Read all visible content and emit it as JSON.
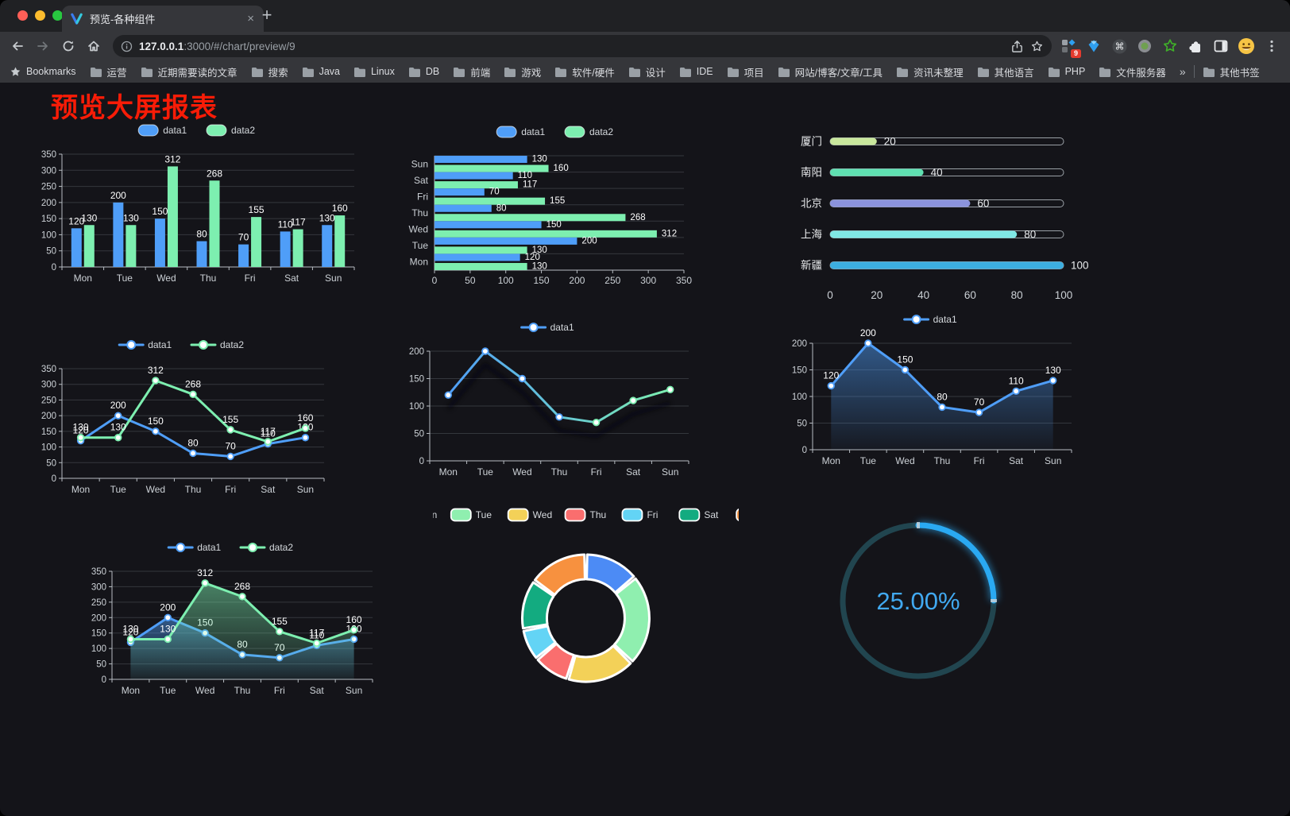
{
  "browser": {
    "tab": {
      "title": "预览-各种组件"
    },
    "url": {
      "host": "127.0.0.1",
      "rest": ":3000/#/chart/preview/9"
    },
    "bookmarks_label": "Bookmarks",
    "bookmarks": [
      "运营",
      "近期需要读的文章",
      "搜索",
      "Java",
      "Linux",
      "DB",
      "前端",
      "游戏",
      "软件/硬件",
      "设计",
      "IDE",
      "项目",
      "网站/博客/文章/工具",
      "资讯未整理",
      "其他语言",
      "PHP",
      "文件服务器"
    ],
    "other_bookmarks": "其他书签",
    "extension_badge": "9",
    "icons": {
      "close": "×",
      "new_tab": "+",
      "overflow": "»",
      "menu": "⋮",
      "command": "⌘"
    }
  },
  "page": {
    "title": "预览大屏报表",
    "title_color": "#f81c07",
    "background": "#141419"
  },
  "colors": {
    "series_blue": "#4f9ef8",
    "series_green": "#7defb0",
    "gauge_blue": "#2aa9f2",
    "axis_text": "#ccd1d6"
  },
  "chart_data": [
    {
      "id": "grouped-bar",
      "type": "bar",
      "categories": [
        "Mon",
        "Tue",
        "Wed",
        "Thu",
        "Fri",
        "Sat",
        "Sun"
      ],
      "series": [
        {
          "name": "data1",
          "color": "#4f9ef8",
          "values": [
            120,
            200,
            150,
            80,
            70,
            110,
            130
          ]
        },
        {
          "name": "data2",
          "color": "#7defb0",
          "values": [
            130,
            130,
            312,
            268,
            155,
            117,
            160
          ]
        }
      ],
      "ylim": [
        0,
        350
      ],
      "ystep": 50,
      "legend_position": "top",
      "legend_marker": "roundRect",
      "value_labels": true,
      "grid": true
    },
    {
      "id": "horizontal-bar",
      "type": "hbar",
      "categories": [
        "Mon",
        "Tue",
        "Wed",
        "Thu",
        "Fri",
        "Sat",
        "Sun"
      ],
      "series": [
        {
          "name": "data1",
          "color": "#4f9ef8",
          "values": [
            120,
            200,
            150,
            80,
            70,
            110,
            130
          ]
        },
        {
          "name": "data2",
          "color": "#7defb0",
          "values": [
            130,
            130,
            312,
            268,
            155,
            117,
            160
          ]
        }
      ],
      "xlim": [
        0,
        350
      ],
      "xstep": 50,
      "legend_position": "top",
      "legend_marker": "roundRect",
      "value_labels": true,
      "grid": true
    },
    {
      "id": "progress-bars",
      "type": "progress",
      "rows": [
        {
          "label": "厦门",
          "value": 20,
          "color": "#c9e79c"
        },
        {
          "label": "南阳",
          "value": 40,
          "color": "#5fe0b1"
        },
        {
          "label": "北京",
          "value": 60,
          "color": "#8b93dd"
        },
        {
          "label": "上海",
          "value": 80,
          "color": "#7fe7e4"
        },
        {
          "label": "新疆",
          "value": 100,
          "color": "#3caee0"
        }
      ],
      "xlim": [
        0,
        100
      ],
      "xstep": 20
    },
    {
      "id": "line-two-series",
      "type": "line",
      "categories": [
        "Mon",
        "Tue",
        "Wed",
        "Thu",
        "Fri",
        "Sat",
        "Sun"
      ],
      "series": [
        {
          "name": "data1",
          "color": "#4f9ef8",
          "values": [
            120,
            200,
            150,
            80,
            70,
            110,
            130
          ]
        },
        {
          "name": "data2",
          "color": "#7defb0",
          "values": [
            130,
            130,
            312,
            268,
            155,
            117,
            160
          ]
        }
      ],
      "ylim": [
        0,
        350
      ],
      "ystep": 50,
      "legend_position": "top",
      "legend_marker": "lineDot",
      "value_labels": true,
      "grid": true
    },
    {
      "id": "line-gradient-shadow",
      "type": "line",
      "categories": [
        "Mon",
        "Tue",
        "Wed",
        "Thu",
        "Fri",
        "Sat",
        "Sun"
      ],
      "series": [
        {
          "name": "data1",
          "color": "#4f9ef8",
          "gradient": [
            "#4f9ef8",
            "#7defb0"
          ],
          "values": [
            120,
            200,
            150,
            80,
            70,
            110,
            130
          ]
        }
      ],
      "ylim": [
        0,
        200
      ],
      "ystep": 50,
      "legend_position": "top",
      "legend_marker": "lineDot",
      "value_labels": false,
      "shadow": true,
      "grid": true
    },
    {
      "id": "area-single",
      "type": "line",
      "categories": [
        "Mon",
        "Tue",
        "Wed",
        "Thu",
        "Fri",
        "Sat",
        "Sun"
      ],
      "series": [
        {
          "name": "data1",
          "color": "#4f9ef8",
          "area": true,
          "values": [
            120,
            200,
            150,
            80,
            70,
            110,
            130
          ]
        }
      ],
      "ylim": [
        0,
        200
      ],
      "ystep": 50,
      "legend_position": "top",
      "legend_marker": "lineDot",
      "value_labels": true,
      "grid": true
    },
    {
      "id": "area-two-series",
      "type": "line",
      "categories": [
        "Mon",
        "Tue",
        "Wed",
        "Thu",
        "Fri",
        "Sat",
        "Sun"
      ],
      "series": [
        {
          "name": "data1",
          "color": "#4f9ef8",
          "area": true,
          "values": [
            120,
            200,
            150,
            80,
            70,
            110,
            130
          ]
        },
        {
          "name": "data2",
          "color": "#7defb0",
          "area": true,
          "values": [
            130,
            130,
            312,
            268,
            155,
            117,
            160
          ]
        }
      ],
      "ylim": [
        0,
        350
      ],
      "ystep": 50,
      "legend_position": "top",
      "legend_marker": "lineDot",
      "value_labels": true,
      "grid": true
    },
    {
      "id": "donut",
      "type": "pie",
      "donut": true,
      "legend_position": "top",
      "items": [
        {
          "label": "Mon",
          "value": 120,
          "color": "#4c8bf5"
        },
        {
          "label": "Tue",
          "value": 200,
          "color": "#8fefaf"
        },
        {
          "label": "Wed",
          "value": 150,
          "color": "#f3d158"
        },
        {
          "label": "Thu",
          "value": 80,
          "color": "#fa6e6e"
        },
        {
          "label": "Fri",
          "value": 70,
          "color": "#63d4f5"
        },
        {
          "label": "Sat",
          "value": 110,
          "color": "#13ab80"
        },
        {
          "label": "Sun",
          "value": 130,
          "color": "#f7913f"
        }
      ]
    },
    {
      "id": "gauge",
      "type": "gauge",
      "value": 25,
      "label": "25.00%",
      "color": "#2aa9f2",
      "track_color": "#21454f",
      "text_color": "#41a9f1"
    }
  ]
}
